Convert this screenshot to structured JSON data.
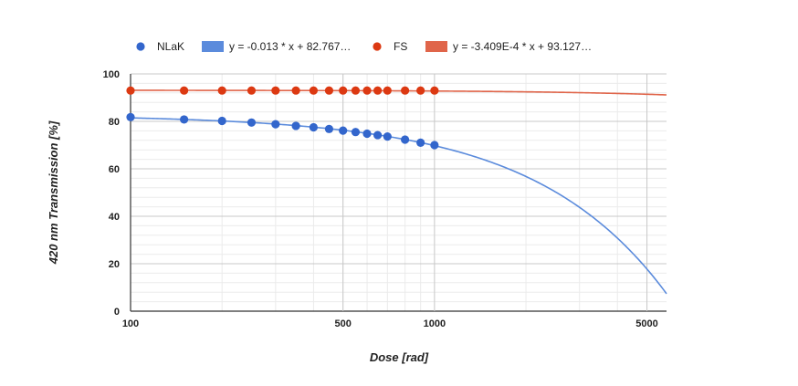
{
  "chart_data": {
    "type": "scatter",
    "x_scale": "log",
    "y_scale": "linear",
    "xlabel": "Dose [rad]",
    "ylabel": "420 nm Transmission [%]",
    "xlim": [
      100,
      5800
    ],
    "ylim": [
      0,
      100
    ],
    "x_ticks": [
      {
        "value": 100,
        "label": "100"
      },
      {
        "value": 500,
        "label": "500"
      },
      {
        "value": 1000,
        "label": "1000"
      },
      {
        "value": 5000,
        "label": "5000"
      }
    ],
    "y_ticks": [
      {
        "value": 0,
        "label": "0"
      },
      {
        "value": 20,
        "label": "20"
      },
      {
        "value": 40,
        "label": "40"
      },
      {
        "value": 60,
        "label": "60"
      },
      {
        "value": 80,
        "label": "80"
      },
      {
        "value": 100,
        "label": "100"
      }
    ],
    "grid": true,
    "legend_position": "top",
    "series": [
      {
        "name": "NLaK",
        "color": "#3366cc",
        "x": [
          100,
          150,
          200,
          250,
          300,
          350,
          400,
          450,
          500,
          550,
          600,
          650,
          700,
          800,
          900,
          1000
        ],
        "y": [
          81.8,
          80.8,
          80.2,
          79.5,
          78.8,
          78.1,
          77.5,
          76.8,
          76.1,
          75.5,
          74.8,
          74.2,
          73.6,
          72.3,
          71.0,
          70.0
        ]
      },
      {
        "name": "FS",
        "color": "#dc3912",
        "x": [
          100,
          150,
          200,
          250,
          300,
          350,
          400,
          450,
          500,
          550,
          600,
          650,
          700,
          800,
          900,
          1000
        ],
        "y": [
          93.0,
          93.0,
          93.0,
          93.0,
          93.0,
          93.0,
          93.0,
          93.0,
          93.0,
          93.0,
          93.0,
          93.0,
          93.0,
          93.0,
          93.0,
          93.0
        ]
      }
    ],
    "trendlines": [
      {
        "label": "y = -0.013 * x + 82.767…",
        "color": "#5b8bdc",
        "slope": -0.013,
        "intercept": 82.767
      },
      {
        "label": "y = -3.409E-4 * x + 93.127…",
        "color": "#e0654a",
        "slope": -0.0003409,
        "intercept": 93.127
      }
    ]
  }
}
